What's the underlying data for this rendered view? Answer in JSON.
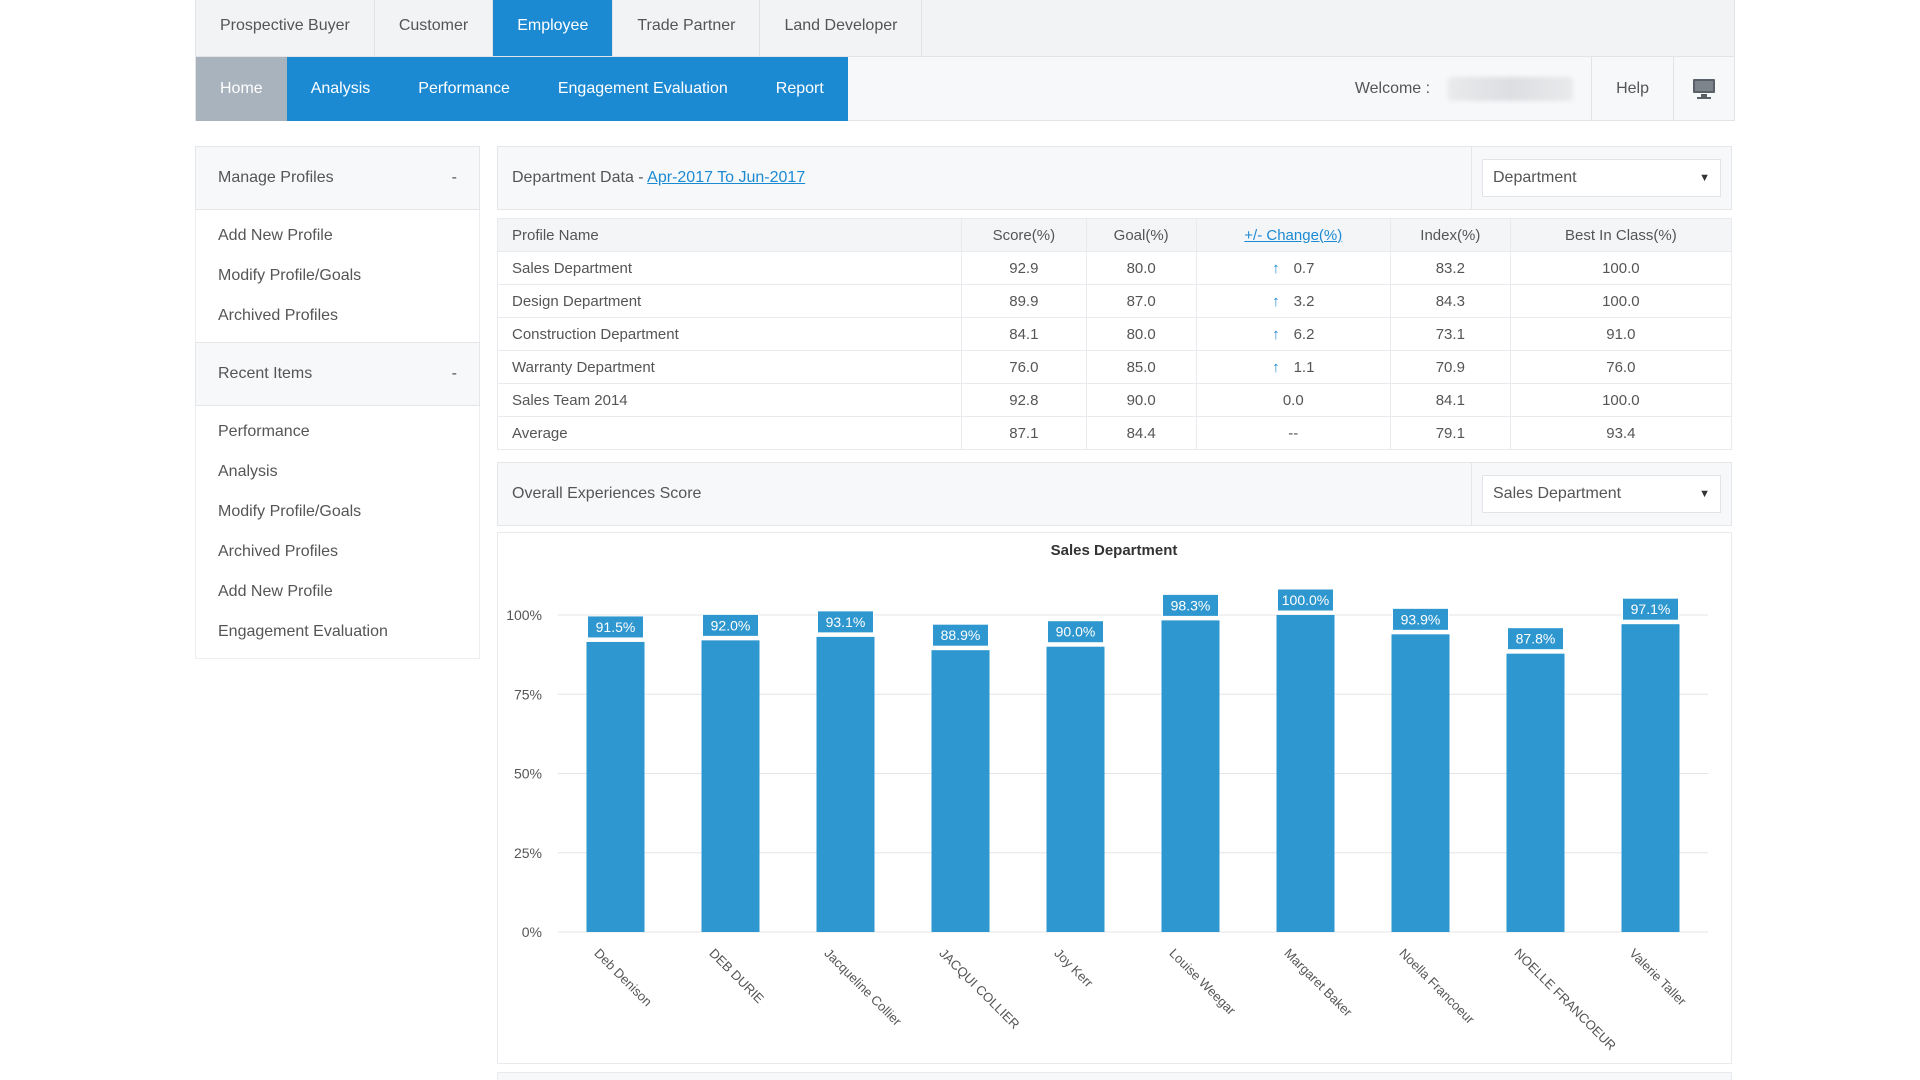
{
  "top_tabs": [
    "Prospective Buyer",
    "Customer",
    "Employee",
    "Trade Partner",
    "Land Developer"
  ],
  "active_top_tab": "Employee",
  "nav": {
    "items": [
      "Home",
      "Analysis",
      "Performance",
      "Engagement Evaluation",
      "Report"
    ],
    "welcome_label": "Welcome :",
    "help_label": "Help",
    "monitor_icon": "monitor-icon"
  },
  "sidebar": {
    "manage_profiles": {
      "title": "Manage Profiles",
      "toggle": "-",
      "items": [
        "Add New Profile",
        "Modify Profile/Goals",
        "Archived Profiles"
      ]
    },
    "recent_items": {
      "title": "Recent Items",
      "toggle": "-",
      "items": [
        "Performance",
        "Analysis",
        "Modify Profile/Goals",
        "Archived Profiles",
        "Add New Profile",
        "Engagement Evaluation"
      ]
    }
  },
  "department_panel": {
    "title_prefix": "Department Data - ",
    "date_range_link": "Apr-2017 To Jun-2017",
    "select_value": "Department"
  },
  "table": {
    "headers": [
      "Profile Name",
      "Score(%)",
      "Goal(%)",
      "+/- Change(%)",
      "Index(%)",
      "Best In Class(%)"
    ],
    "rows": [
      {
        "name": "Sales Department",
        "score": "92.9",
        "goal": "80.0",
        "change": "0.7",
        "up": true,
        "index": "83.2",
        "best": "100.0"
      },
      {
        "name": "Design Department",
        "score": "89.9",
        "goal": "87.0",
        "change": "3.2",
        "up": true,
        "index": "84.3",
        "best": "100.0"
      },
      {
        "name": "Construction Department",
        "score": "84.1",
        "goal": "80.0",
        "change": "6.2",
        "up": true,
        "index": "73.1",
        "best": "91.0"
      },
      {
        "name": "Warranty Department",
        "score": "76.0",
        "goal": "85.0",
        "change": "1.1",
        "up": true,
        "index": "70.9",
        "best": "76.0"
      },
      {
        "name": "Sales Team 2014",
        "score": "92.8",
        "goal": "90.0",
        "change": "0.0",
        "up": false,
        "index": "84.1",
        "best": "100.0"
      },
      {
        "name": "Average",
        "score": "87.1",
        "goal": "84.4",
        "change": "--",
        "up": false,
        "index": "79.1",
        "best": "93.4"
      }
    ]
  },
  "experience_panel": {
    "title": "Overall Experiences Score",
    "select_value": "Sales Department"
  },
  "colors": {
    "accent": "#1c8ad3",
    "bar": "#2e97cf",
    "label_bg": "#2e97cf",
    "home_tab": "#a9b3bd"
  },
  "chart_data": {
    "type": "bar",
    "title": "Sales Department",
    "categories": [
      "Deb Denison",
      "DEB DURIE",
      "Jacqueline  Collier",
      "JACQUI COLLIER",
      "Joy Kerr",
      "Louise Weegar",
      "Margaret Baker",
      "Noella Francoeur",
      "NOELLE FRANCOEUR",
      "Valerie Taller"
    ],
    "values": [
      91.5,
      92.0,
      93.1,
      88.9,
      90.0,
      98.3,
      100.0,
      93.9,
      87.8,
      97.1
    ],
    "data_labels": [
      "91.5%",
      "92.0%",
      "93.1%",
      "88.9%",
      "90.0%",
      "98.3%",
      "100.0%",
      "93.9%",
      "87.8%",
      "97.1%"
    ],
    "yticks": [
      0,
      25,
      50,
      75,
      100
    ],
    "ytick_labels": [
      "0%",
      "25%",
      "50%",
      "75%",
      "100%"
    ],
    "ylim": [
      0,
      100
    ],
    "grid": true,
    "xlabel": "",
    "ylabel": ""
  }
}
